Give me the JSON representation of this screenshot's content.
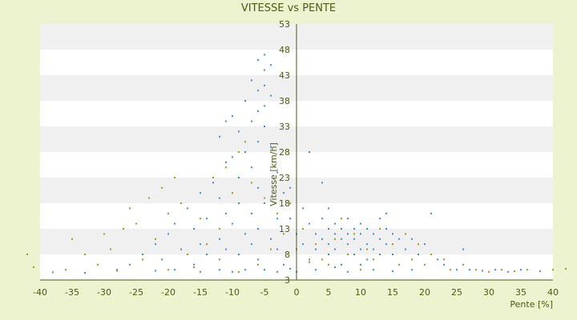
{
  "chart_data": {
    "type": "scatter",
    "title": "VITESSE vs PENTE",
    "xlabel": "Pente [%]",
    "ylabel": "Vitesse [km/h]",
    "xlim": [
      -40,
      40
    ],
    "ylim": [
      3,
      53
    ],
    "x_ticks": [
      -40,
      -35,
      -30,
      -25,
      -20,
      -15,
      -10,
      -5,
      0,
      5,
      10,
      15,
      20,
      25,
      30,
      35,
      40
    ],
    "y_ticks": [
      3,
      8,
      13,
      18,
      23,
      28,
      33,
      38,
      43,
      48,
      53
    ],
    "grid": "alternating horizontal bands",
    "legend": "none",
    "colors": {
      "background": "#eef3cf",
      "plot": "#ffffff",
      "band": "#f0f0f0",
      "axis": "#4d5a14",
      "text": "#4d5a14"
    },
    "series": [
      {
        "color": "#3a8ee6",
        "points": [
          [
            -5,
            47
          ],
          [
            -6,
            46
          ],
          [
            -4,
            45
          ],
          [
            -5,
            44
          ],
          [
            -7,
            42
          ],
          [
            -5,
            41
          ],
          [
            -6,
            40
          ],
          [
            -4,
            39
          ],
          [
            -8,
            38
          ],
          [
            -5,
            37
          ],
          [
            -6,
            36
          ],
          [
            -10,
            35
          ],
          [
            -11,
            34
          ],
          [
            -7,
            34
          ],
          [
            -5,
            33
          ],
          [
            -9,
            32
          ],
          [
            -12,
            31
          ],
          [
            -6,
            30
          ],
          [
            -4,
            29
          ],
          [
            -8,
            28
          ],
          [
            -10,
            27
          ],
          [
            -11,
            26
          ],
          [
            -7,
            25
          ],
          [
            -3,
            24
          ],
          [
            -9,
            23
          ],
          [
            -13,
            22
          ],
          [
            -6,
            21
          ],
          [
            -15,
            20
          ],
          [
            -2,
            20
          ],
          [
            -12,
            19
          ],
          [
            -9,
            18
          ],
          [
            -5,
            18
          ],
          [
            -17,
            17
          ],
          [
            -11,
            16
          ],
          [
            -7,
            16
          ],
          [
            -14,
            15
          ],
          [
            -3,
            15
          ],
          [
            -19,
            14
          ],
          [
            -10,
            14
          ],
          [
            -6,
            13
          ],
          [
            -16,
            13
          ],
          [
            -8,
            12
          ],
          [
            -20,
            12
          ],
          [
            -12,
            11
          ],
          [
            -4,
            11
          ],
          [
            -22,
            10
          ],
          [
            -15,
            10
          ],
          [
            -7,
            10
          ],
          [
            -18,
            9
          ],
          [
            -11,
            9
          ],
          [
            -3,
            9
          ],
          [
            -24,
            8
          ],
          [
            -14,
            8
          ],
          [
            -9,
            8
          ],
          [
            -21,
            7
          ],
          [
            -6,
            7
          ],
          [
            -16,
            6
          ],
          [
            -2,
            6
          ],
          [
            -26,
            6
          ],
          [
            -12,
            5
          ],
          [
            -19,
            5
          ],
          [
            -5,
            5
          ],
          [
            -8,
            5
          ],
          [
            -28,
            5
          ],
          [
            -10,
            4.6
          ],
          [
            -3,
            4.6
          ],
          [
            -15,
            4.6
          ],
          [
            -22,
            4.8
          ],
          [
            -33,
            4.4
          ],
          [
            -38,
            4.5
          ],
          [
            -1,
            21
          ],
          [
            -1,
            15
          ],
          [
            0,
            12
          ],
          [
            1,
            17
          ],
          [
            1,
            10
          ],
          [
            2,
            14
          ],
          [
            2,
            28
          ],
          [
            3,
            12
          ],
          [
            3,
            9
          ],
          [
            4,
            15
          ],
          [
            4,
            11
          ],
          [
            4,
            22
          ],
          [
            5,
            13
          ],
          [
            5,
            10
          ],
          [
            5,
            8
          ],
          [
            6,
            14
          ],
          [
            6,
            12
          ],
          [
            6,
            9
          ],
          [
            7,
            13
          ],
          [
            7,
            11
          ],
          [
            7,
            6
          ],
          [
            8,
            15
          ],
          [
            8,
            12
          ],
          [
            8,
            10
          ],
          [
            9,
            13
          ],
          [
            9,
            11
          ],
          [
            9,
            8
          ],
          [
            10,
            14
          ],
          [
            10,
            12
          ],
          [
            10,
            9
          ],
          [
            11,
            13
          ],
          [
            11,
            10
          ],
          [
            11,
            7
          ],
          [
            12,
            12
          ],
          [
            12,
            9
          ],
          [
            13,
            15
          ],
          [
            13,
            11
          ],
          [
            13,
            8
          ],
          [
            14,
            13
          ],
          [
            14,
            10
          ],
          [
            15,
            12
          ],
          [
            15,
            8
          ],
          [
            16,
            11
          ],
          [
            17,
            9
          ],
          [
            18,
            11
          ],
          [
            19,
            8
          ],
          [
            20,
            10
          ],
          [
            21,
            16
          ],
          [
            22,
            7
          ],
          [
            23,
            6
          ],
          [
            25,
            5
          ],
          [
            26,
            9
          ],
          [
            27,
            5
          ],
          [
            29,
            4.8
          ],
          [
            31,
            5
          ],
          [
            33,
            4.6
          ],
          [
            35,
            5
          ],
          [
            38,
            4.7
          ],
          [
            3,
            5
          ],
          [
            12,
            5
          ],
          [
            18,
            5
          ],
          [
            8,
            4.6
          ],
          [
            15,
            4.7
          ],
          [
            6,
            5.5
          ],
          [
            10,
            6
          ],
          [
            0,
            4.6
          ],
          [
            -1,
            5.2
          ],
          [
            2,
            6.5
          ],
          [
            14,
            16
          ],
          [
            5,
            17
          ]
        ]
      },
      {
        "color": "#9a9a1e",
        "points": [
          [
            -8,
            30
          ],
          [
            -9,
            28
          ],
          [
            -11,
            25
          ],
          [
            -13,
            23
          ],
          [
            -19,
            23
          ],
          [
            -21,
            21
          ],
          [
            -23,
            19
          ],
          [
            -18,
            18
          ],
          [
            -26,
            17
          ],
          [
            -20,
            16
          ],
          [
            -15,
            15
          ],
          [
            -25,
            14
          ],
          [
            -27,
            13
          ],
          [
            -12,
            13
          ],
          [
            -30,
            12
          ],
          [
            -22,
            11
          ],
          [
            -35,
            11
          ],
          [
            -14,
            10
          ],
          [
            -29,
            9
          ],
          [
            -17,
            8
          ],
          [
            -33,
            8
          ],
          [
            -24,
            7
          ],
          [
            -12,
            7
          ],
          [
            -31,
            6
          ],
          [
            -6,
            6
          ],
          [
            -36,
            5
          ],
          [
            -20,
            5
          ],
          [
            -9,
            4.6
          ],
          [
            -41,
            5.5
          ],
          [
            -42,
            8
          ],
          [
            -28,
            4.8
          ],
          [
            -16,
            5.5
          ],
          [
            -4,
            9
          ],
          [
            -2,
            12
          ],
          [
            -1,
            18
          ],
          [
            1,
            13
          ],
          [
            3,
            10
          ],
          [
            4,
            7
          ],
          [
            6,
            11
          ],
          [
            7,
            15
          ],
          [
            8,
            8
          ],
          [
            9,
            12
          ],
          [
            11,
            9
          ],
          [
            12,
            7
          ],
          [
            13,
            13
          ],
          [
            15,
            10
          ],
          [
            16,
            6
          ],
          [
            17,
            12
          ],
          [
            19,
            10
          ],
          [
            20,
            6
          ],
          [
            21,
            8
          ],
          [
            23,
            7
          ],
          [
            24,
            5
          ],
          [
            26,
            6
          ],
          [
            28,
            5
          ],
          [
            30,
            4.6
          ],
          [
            32,
            5
          ],
          [
            34,
            4.7
          ],
          [
            36,
            5
          ],
          [
            40,
            5
          ],
          [
            42,
            5.2
          ],
          [
            -5,
            19
          ],
          [
            -7,
            22
          ],
          [
            -10,
            20
          ],
          [
            -3,
            16
          ],
          [
            0,
            9
          ],
          [
            2,
            7
          ],
          [
            5,
            6
          ],
          [
            10,
            5
          ],
          [
            18,
            7
          ]
        ]
      }
    ]
  }
}
